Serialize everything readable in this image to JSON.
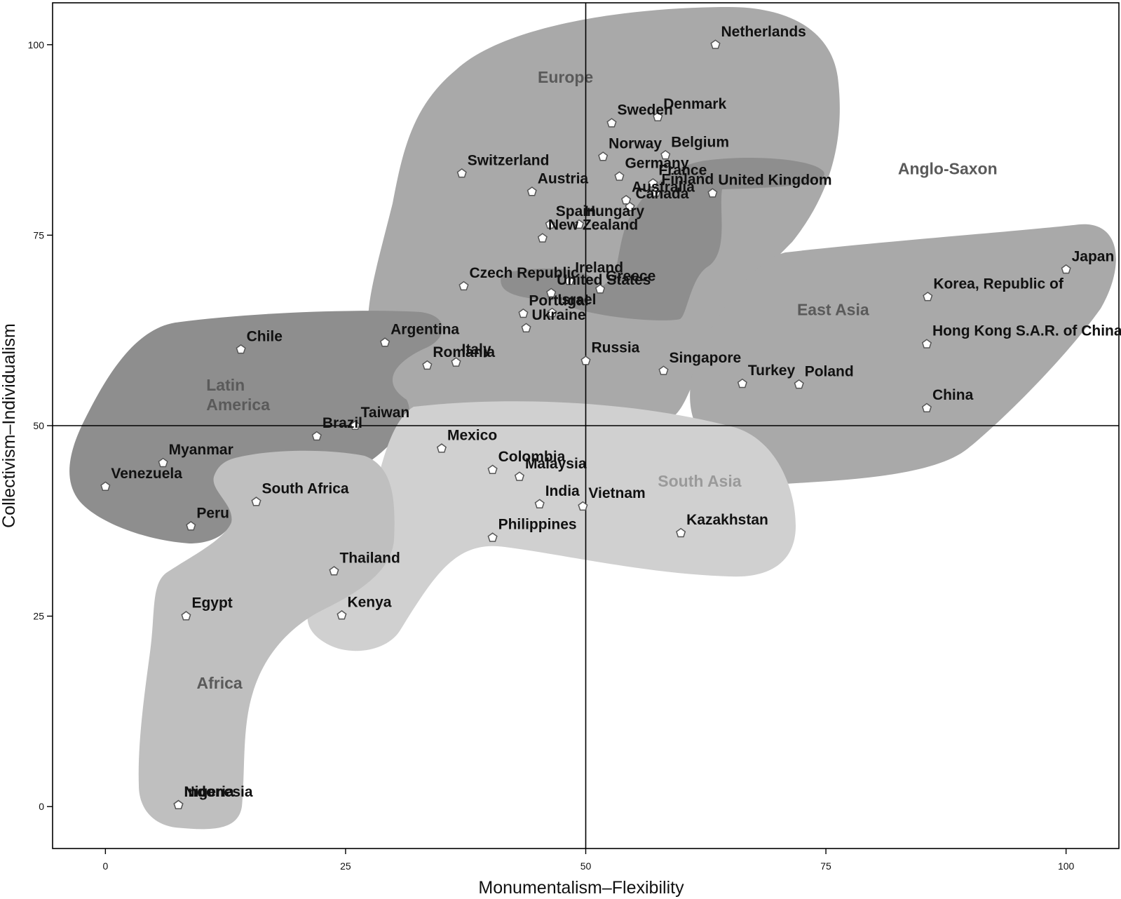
{
  "chart_data": {
    "type": "scatter",
    "xlabel": "Monumentalism–Flexibility",
    "ylabel": "Collectivism–Individualism",
    "xlim": [
      -5.5,
      105.5
    ],
    "ylim": [
      -5.5,
      105.5
    ],
    "xticks": [
      0,
      25,
      50,
      75,
      100
    ],
    "yticks": [
      0,
      25,
      50,
      75,
      100
    ],
    "reference_lines": {
      "x": 50,
      "y": 50
    },
    "grid": false,
    "legend": "none",
    "colors": {
      "point_fill": "#ffffff",
      "point_stroke": "#555555",
      "text": "#111111",
      "region_label": "#5a5a5a",
      "region_label_light": "#9a9a9a",
      "europe": "#a9a9a9",
      "anglo_saxon": "#8e8e8e",
      "latin_america": "#8e8e8e",
      "east_asia": "#a9a9a9",
      "south_asia": "#d0d0d0",
      "africa": "#bfbfbf"
    },
    "regions": [
      {
        "name": "Europe",
        "label": "Europe",
        "label_at": [
          45,
          95
        ],
        "color_key": "region_label"
      },
      {
        "name": "Anglo-Saxon",
        "label": "Anglo-Saxon",
        "label_at": [
          82.5,
          83
        ],
        "color_key": "region_label"
      },
      {
        "name": "Latin America",
        "label_lines": [
          "Latin",
          "America"
        ],
        "label_at": [
          10.5,
          54.6
        ],
        "color_key": "region_label"
      },
      {
        "name": "East Asia",
        "label": "East Asia",
        "label_at": [
          72,
          64.5
        ],
        "color_key": "region_label"
      },
      {
        "name": "South Asia",
        "label": "South Asia",
        "label_at": [
          57.5,
          42
        ],
        "color_key": "region_label_light"
      },
      {
        "name": "Africa",
        "label": "Africa",
        "label_at": [
          9.5,
          15.5
        ],
        "color_key": "region_label"
      }
    ],
    "points": [
      {
        "label": "Netherlands",
        "x": 63.5,
        "y": 100
      },
      {
        "label": "Denmark",
        "x": 57.5,
        "y": 90.5
      },
      {
        "label": "Sweden",
        "x": 52.7,
        "y": 89.7
      },
      {
        "label": "Norway",
        "x": 51.8,
        "y": 85.3
      },
      {
        "label": "Belgium",
        "x": 58.3,
        "y": 85.5
      },
      {
        "label": "Switzerland",
        "x": 37.1,
        "y": 83.1
      },
      {
        "label": "Germany",
        "x": 53.5,
        "y": 82.7
      },
      {
        "label": "France",
        "x": 57.0,
        "y": 81.8
      },
      {
        "label": "United Kingdom",
        "x": 63.2,
        "y": 80.5
      },
      {
        "label": "Austria",
        "x": 44.4,
        "y": 80.7
      },
      {
        "label": "Finland",
        "x": 57.3,
        "y": 80.6
      },
      {
        "label": "Hungary",
        "x": 49.3,
        "y": 76.4
      },
      {
        "label": "Australia",
        "x": 54.2,
        "y": 79.6
      },
      {
        "label": "Canada",
        "x": 54.6,
        "y": 78.7
      },
      {
        "label": "Spain",
        "x": 46.3,
        "y": 76.4
      },
      {
        "label": "New Zealand",
        "x": 45.5,
        "y": 74.6
      },
      {
        "label": "Czech Republic",
        "x": 37.3,
        "y": 68.3
      },
      {
        "label": "Ireland",
        "x": 48.3,
        "y": 69.0
      },
      {
        "label": "Greece",
        "x": 51.5,
        "y": 67.9
      },
      {
        "label": "United States",
        "x": 46.4,
        "y": 67.4
      },
      {
        "label": "Portugal",
        "x": 43.5,
        "y": 64.7
      },
      {
        "label": "Israel",
        "x": 46.5,
        "y": 64.8
      },
      {
        "label": "Argentina",
        "x": 29.1,
        "y": 60.9
      },
      {
        "label": "Ukraine",
        "x": 43.8,
        "y": 62.8
      },
      {
        "label": "Chile",
        "x": 14.1,
        "y": 60.0
      },
      {
        "label": "Italy",
        "x": 36.5,
        "y": 58.3
      },
      {
        "label": "Russia",
        "x": 50.0,
        "y": 58.5
      },
      {
        "label": "Romania",
        "x": 33.5,
        "y": 57.9
      },
      {
        "label": "Singapore",
        "x": 58.1,
        "y": 57.2
      },
      {
        "label": "Turkey",
        "x": 66.3,
        "y": 55.5
      },
      {
        "label": "Poland",
        "x": 72.2,
        "y": 55.4
      },
      {
        "label": "China",
        "x": 85.5,
        "y": 52.3
      },
      {
        "label": "Japan",
        "x": 100,
        "y": 70.5
      },
      {
        "label": "Korea, Republic of",
        "x": 85.6,
        "y": 66.9
      },
      {
        "label": "Hong Kong S.A.R. of China",
        "x": 85.5,
        "y": 60.7
      },
      {
        "label": "Taiwan",
        "x": 26.0,
        "y": 50.0
      },
      {
        "label": "Brazil",
        "x": 22.0,
        "y": 48.6
      },
      {
        "label": "Mexico",
        "x": 35.0,
        "y": 47.0
      },
      {
        "label": "Myanmar",
        "x": 6.0,
        "y": 45.1
      },
      {
        "label": "Colombia",
        "x": 40.3,
        "y": 44.2
      },
      {
        "label": "Malaysia",
        "x": 43.1,
        "y": 43.3
      },
      {
        "label": "Venezuela",
        "x": 0,
        "y": 42.0
      },
      {
        "label": "South Africa",
        "x": 15.7,
        "y": 40.0
      },
      {
        "label": "India",
        "x": 45.2,
        "y": 39.7
      },
      {
        "label": "Vietnam",
        "x": 49.7,
        "y": 39.4
      },
      {
        "label": "Peru",
        "x": 8.9,
        "y": 36.8
      },
      {
        "label": "Philippines",
        "x": 40.3,
        "y": 35.3
      },
      {
        "label": "Kazakhstan",
        "x": 59.9,
        "y": 35.9
      },
      {
        "label": "Thailand",
        "x": 23.8,
        "y": 30.9
      },
      {
        "label": "Egypt",
        "x": 8.4,
        "y": 25.0
      },
      {
        "label": "Kenya",
        "x": 24.6,
        "y": 25.1
      },
      {
        "label": "Indonesia",
        "x": 7.6,
        "y": 0.2
      },
      {
        "label": "Nigeria",
        "x": 7.6,
        "y": 0.2
      }
    ]
  }
}
